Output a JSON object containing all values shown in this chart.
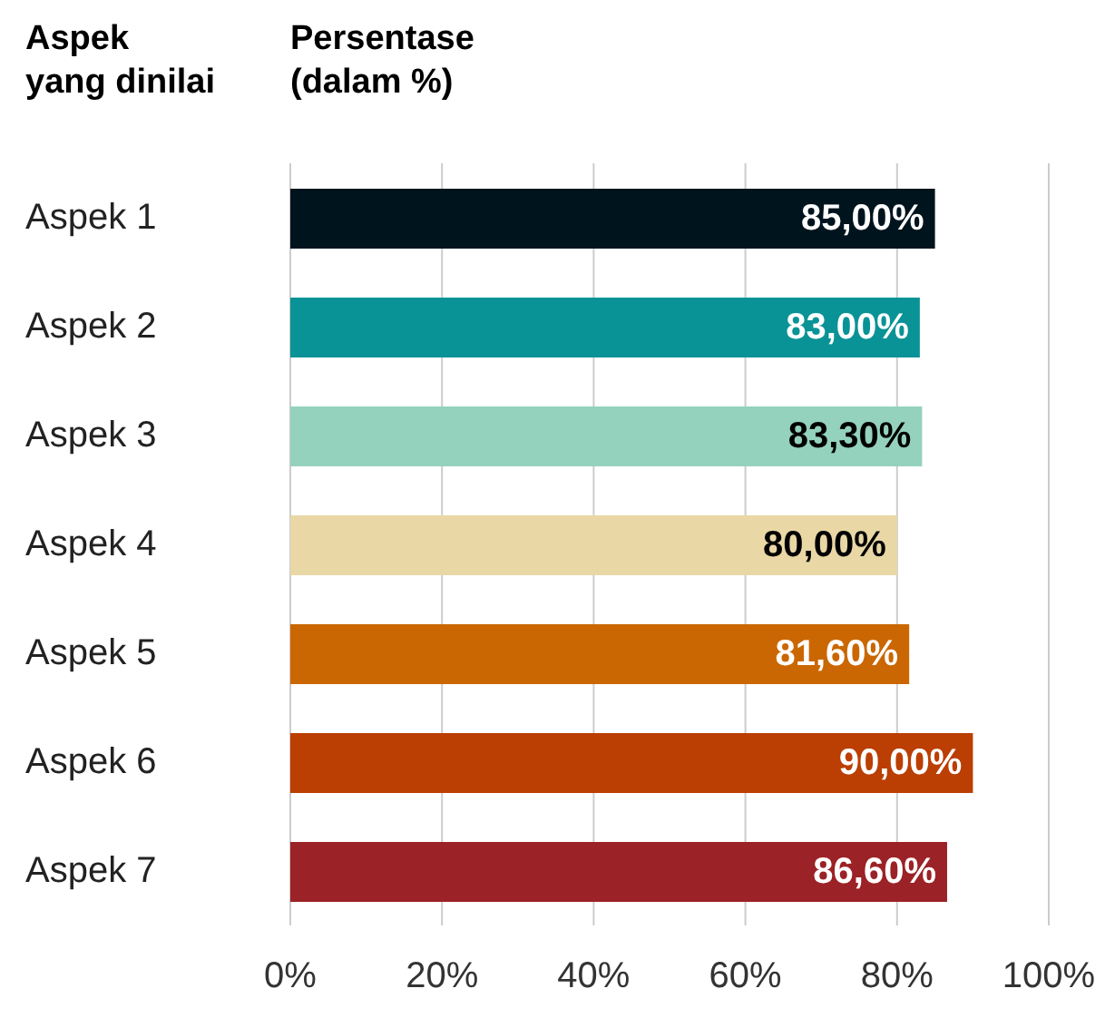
{
  "chart_data": {
    "type": "bar",
    "orientation": "horizontal",
    "ylabel": "Aspek\nyang dinilai",
    "xlabel": "Persentase\n(dalam %)",
    "categories": [
      "Aspek 1",
      "Aspek 2",
      "Aspek 3",
      "Aspek 4",
      "Aspek 5",
      "Aspek 6",
      "Aspek 7"
    ],
    "values": [
      85,
      83,
      83.3,
      80,
      81.6,
      90,
      86.6
    ],
    "value_labels": [
      "85,00%",
      "83,00%",
      "83,30%",
      "80,00%",
      "81,60%",
      "90,00%",
      "86,60%"
    ],
    "colors": [
      "#00141e",
      "#0a9396",
      "#94d2bd",
      "#e9d8a6",
      "#ca6702",
      "#bb3e03",
      "#9b2226"
    ],
    "xlim": [
      0,
      100
    ],
    "xticks": [
      {
        "value": 0,
        "label": "0%"
      },
      {
        "value": 20,
        "label": "20%"
      },
      {
        "value": 40,
        "label": "40%"
      },
      {
        "value": 60,
        "label": "60%"
      },
      {
        "value": 80,
        "label": "80%"
      },
      {
        "value": 100,
        "label": "100%"
      }
    ],
    "grid": "x"
  }
}
